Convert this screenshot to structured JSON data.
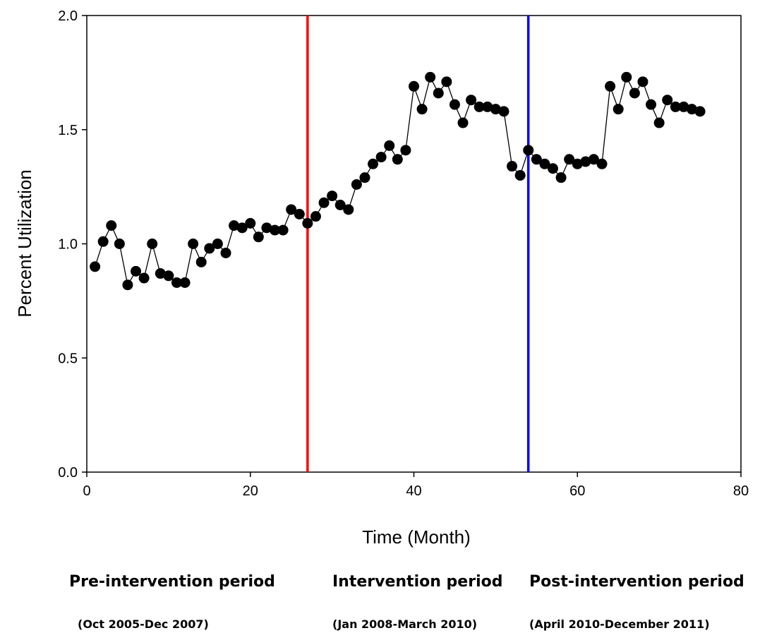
{
  "chart_data": {
    "type": "line",
    "xlabel": "Time (Month)",
    "ylabel": "Percent Utilization",
    "xlim": [
      0,
      80
    ],
    "ylim": [
      0.0,
      2.0
    ],
    "xticks": [
      "0",
      "20",
      "40",
      "60",
      "80"
    ],
    "yticks": [
      "0.0",
      "0.5",
      "1.0",
      "1.5",
      "2.0"
    ],
    "grid": false,
    "series": [
      {
        "color": "#000000",
        "marker": "circle",
        "x": [
          1,
          2,
          3,
          4,
          5,
          6,
          7,
          8,
          9,
          10,
          11,
          12,
          13,
          14,
          15,
          16,
          17,
          18,
          19,
          20,
          21,
          22,
          23,
          24,
          25,
          26,
          27,
          28,
          29,
          30,
          31,
          32,
          33,
          34,
          35,
          36,
          37,
          38,
          39,
          40,
          41,
          42,
          43,
          44,
          45,
          46,
          47,
          48,
          49,
          50,
          51,
          52,
          53,
          54,
          55,
          56,
          57,
          58,
          59,
          60,
          61,
          62,
          63,
          64,
          65,
          66,
          67,
          68,
          69,
          70,
          71,
          72,
          73,
          74,
          75
        ],
        "y": [
          0.9,
          1.01,
          1.08,
          1.0,
          0.82,
          0.88,
          0.85,
          1.0,
          0.87,
          0.86,
          0.83,
          0.83,
          1.0,
          0.92,
          0.98,
          1.0,
          0.96,
          1.08,
          1.07,
          1.09,
          1.03,
          1.07,
          1.06,
          1.06,
          1.15,
          1.13,
          1.09,
          1.12,
          1.18,
          1.21,
          1.17,
          1.15,
          1.26,
          1.29,
          1.35,
          1.38,
          1.43,
          1.37,
          1.41,
          1.69,
          1.59,
          1.73,
          1.66,
          1.71,
          1.61,
          1.53,
          1.63,
          1.6,
          1.6,
          1.59,
          1.58,
          1.34,
          1.3,
          1.41,
          1.37,
          1.35,
          1.33,
          1.29,
          1.37,
          1.35,
          1.36,
          1.37,
          1.35,
          1.69,
          1.59,
          1.73,
          1.66,
          1.71,
          1.61,
          1.53,
          1.63,
          1.6,
          1.6,
          1.59,
          1.58
        ]
      }
    ],
    "vlines": [
      {
        "x": 27,
        "color": "#ff0000"
      },
      {
        "x": 54,
        "color": "#0000ff"
      }
    ]
  },
  "periods": [
    {
      "name": "Pre-intervention period",
      "dates": "(Oct 2005-Dec 2007)"
    },
    {
      "name": "Intervention period",
      "dates": "(Jan 2008-March 2010)"
    },
    {
      "name": "Post-intervention period",
      "dates": "(April 2010-December 2011)"
    }
  ]
}
